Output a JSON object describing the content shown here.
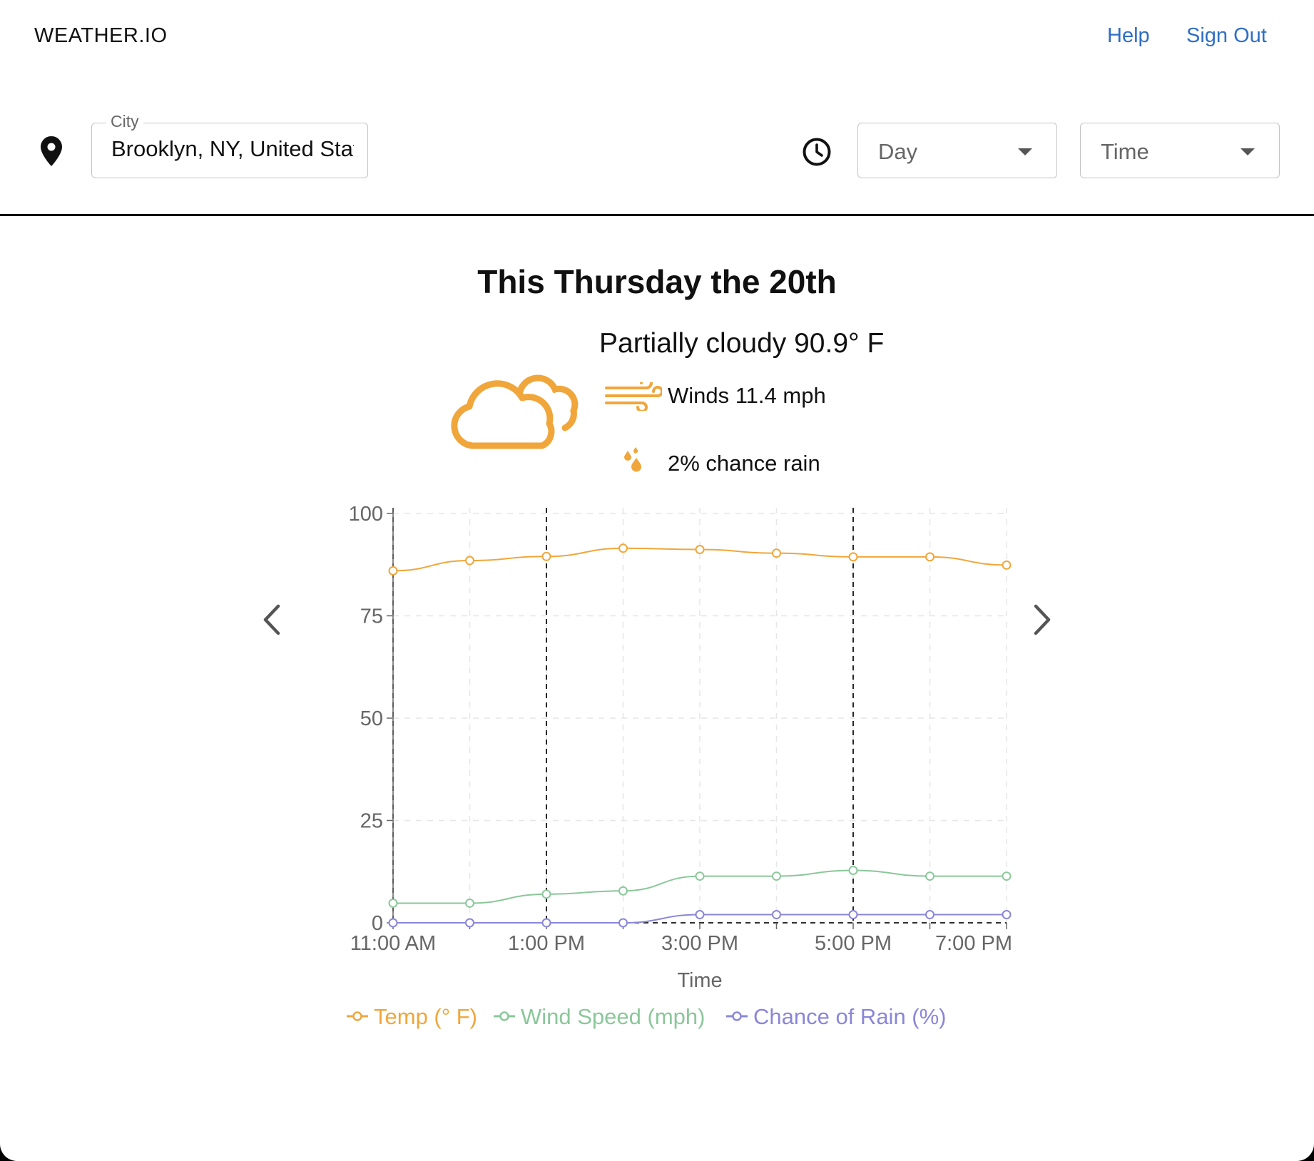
{
  "header": {
    "brand": "WEATHER.IO",
    "links": {
      "help": "Help",
      "sign_out": "Sign Out"
    }
  },
  "controls": {
    "city": {
      "label": "City",
      "value": "Brooklyn, NY, United States"
    },
    "day": {
      "placeholder": "Day"
    },
    "time": {
      "placeholder": "Time"
    }
  },
  "forecast": {
    "title": "This Thursday the 20th",
    "condition": "Partially cloudy 90.9° F",
    "wind": "Winds 11.4 mph",
    "rain": "2% chance rain",
    "icon_color": "#f0a63a"
  },
  "icons": {
    "location": "map-pin-icon",
    "clock": "clock-icon",
    "weather": "partly-cloudy-icon",
    "wind": "wind-icon",
    "rain": "raindrops-icon",
    "prev": "chevron-left-icon",
    "next": "chevron-right-icon"
  },
  "chart_data": {
    "type": "line",
    "x": [
      "11:00 AM",
      "12:00 PM",
      "1:00 PM",
      "2:00 PM",
      "3:00 PM",
      "4:00 PM",
      "5:00 PM",
      "6:00 PM",
      "7:00 PM"
    ],
    "x_tick_labels": [
      "11:00 AM",
      "1:00 PM",
      "3:00 PM",
      "5:00 PM",
      "7:00 PM"
    ],
    "xlabel": "Time",
    "ylabel": "",
    "ylim": [
      0,
      100
    ],
    "y_ticks": [
      0,
      25,
      50,
      75,
      100
    ],
    "grid": true,
    "legend": "bottom",
    "series": [
      {
        "name": "Temp (° F)",
        "color": "#f0a63a",
        "values": [
          86.0,
          88.5,
          89.5,
          91.5,
          91.2,
          90.3,
          89.4,
          89.4,
          87.4
        ]
      },
      {
        "name": "Wind Speed (mph)",
        "color": "#8bc79a",
        "values": [
          4.8,
          4.8,
          7.0,
          7.8,
          11.4,
          11.4,
          12.8,
          11.4,
          11.4
        ]
      },
      {
        "name": "Chance of Rain (%)",
        "color": "#8a86d8",
        "values": [
          0,
          0,
          0,
          0,
          2,
          2,
          2,
          2,
          2
        ]
      }
    ]
  }
}
